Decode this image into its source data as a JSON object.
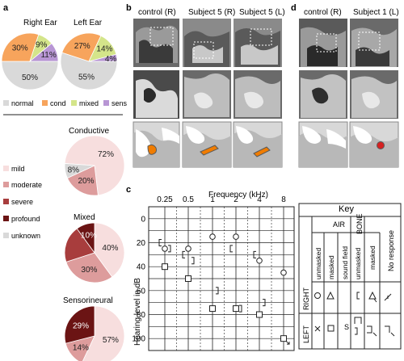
{
  "panels": {
    "a": "a",
    "b": "b",
    "c": "c",
    "d": "d"
  },
  "panel_a": {
    "ear_titles": [
      "Right Ear",
      "Left Ear"
    ],
    "legend_labels": [
      "normal",
      "cond",
      "mixed",
      "sens"
    ],
    "type_legend": [
      "mild",
      "moderate",
      "severe",
      "profound",
      "unknown"
    ],
    "type_titles": [
      "Conductive",
      "Mixed",
      "Sensorineural"
    ]
  },
  "panel_b": {
    "titles": [
      "control (R)",
      "Subject 5 (R)",
      "Subject 5 (L)"
    ]
  },
  "panel_d": {
    "titles": [
      "control (R)",
      "Subject 1 (L)"
    ]
  },
  "audiogram": {
    "freq_label": "Frequency (kHz)",
    "y_label": "Hearing level in dB"
  },
  "key": {
    "title": "Key",
    "air": "AIR",
    "bone": "BONE",
    "no_response": "No response",
    "unmasked": "unmasked",
    "masked": "masked",
    "sound_field": "sound field",
    "right": "RIGHT",
    "left": "LEFT",
    "s": "S"
  },
  "colors": {
    "normal": "#d9d9d9",
    "cond": "#f7a45c",
    "mixed": "#d4e58a",
    "sens": "#b896d4",
    "mild": "#f7dede",
    "moderate": "#dd9c9c",
    "severe": "#a83d3d",
    "profound": "#6b1414",
    "unknown": "#d9d9d9",
    "highlight_orange": "#f07c00",
    "highlight_red": "#d62020"
  },
  "chart_data": [
    {
      "type": "pie",
      "title": "Right Ear",
      "categories": [
        "normal",
        "cond",
        "mixed",
        "sens"
      ],
      "values": [
        50,
        30,
        9,
        11
      ],
      "labels": [
        "50%",
        "30%",
        "9%",
        "11%"
      ]
    },
    {
      "type": "pie",
      "title": "Left Ear",
      "categories": [
        "normal",
        "cond",
        "mixed",
        "sens"
      ],
      "values": [
        55,
        27,
        14,
        4
      ],
      "labels": [
        "55%",
        "27%",
        "14%",
        "4%"
      ]
    },
    {
      "type": "pie",
      "title": "Conductive",
      "categories": [
        "mild",
        "moderate",
        "unknown"
      ],
      "values": [
        72,
        20,
        8
      ],
      "labels": [
        "72%",
        "20%",
        "8%"
      ]
    },
    {
      "type": "pie",
      "title": "Mixed",
      "categories": [
        "mild",
        "moderate",
        "severe",
        "profound"
      ],
      "values": [
        40,
        30,
        20,
        10
      ],
      "labels": [
        "40%",
        "30%",
        "",
        "10%"
      ]
    },
    {
      "type": "pie",
      "title": "Sensorineural",
      "categories": [
        "mild",
        "moderate",
        "profound"
      ],
      "values": [
        57,
        14,
        29
      ],
      "labels": [
        "57%",
        "14%",
        "29%"
      ]
    },
    {
      "type": "scatter",
      "xlabel": "Frequency (kHz)",
      "ylabel": "Hearing level in dB",
      "x_ticks": [
        "0.25",
        "0.5",
        "1",
        "2",
        "4",
        "8"
      ],
      "y_ticks": [
        0,
        20,
        40,
        60,
        80,
        100
      ],
      "ylim": [
        -10,
        110
      ],
      "series": [
        {
          "marker": "O",
          "points": [
            [
              0.25,
              25
            ],
            [
              0.5,
              25
            ],
            [
              1,
              15
            ],
            [
              2,
              15
            ],
            [
              4,
              35
            ],
            [
              8,
              45
            ]
          ]
        },
        {
          "marker": "[",
          "points": [
            [
              0.25,
              20
            ],
            [
              0.5,
              30
            ],
            [
              2,
              25
            ],
            [
              4,
              30
            ]
          ]
        },
        {
          "marker": "]",
          "points": [
            [
              0.25,
              25
            ],
            [
              0.5,
              35
            ],
            [
              1,
              60
            ],
            [
              2,
              75
            ],
            [
              4,
              70
            ]
          ]
        },
        {
          "marker": "□",
          "points": [
            [
              0.25,
              40
            ],
            [
              0.5,
              50
            ],
            [
              1,
              75
            ],
            [
              2,
              75
            ],
            [
              4,
              80
            ],
            [
              8,
              100
            ]
          ]
        }
      ]
    }
  ]
}
